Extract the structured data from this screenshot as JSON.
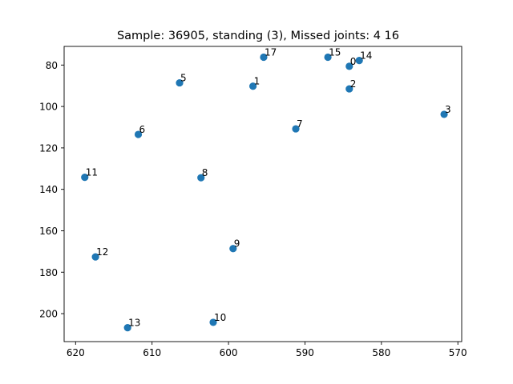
{
  "chart_data": {
    "type": "scatter",
    "title": "Sample: 36905, standing (3), Missed joints: 4  16",
    "xlabel": "",
    "ylabel": "",
    "xlim": [
      621.5,
      569.5
    ],
    "ylim": [
      213.5,
      71
    ],
    "x_inverted": true,
    "y_inverted": true,
    "grid": false,
    "marker_color": "#1f77b4",
    "x_ticks": [
      620,
      610,
      600,
      590,
      580,
      570
    ],
    "y_ticks": [
      80,
      100,
      120,
      140,
      160,
      180,
      200
    ],
    "points": [
      {
        "label": "0",
        "x": 584.2,
        "y": 80.6
      },
      {
        "label": "1",
        "x": 596.8,
        "y": 90.2
      },
      {
        "label": "2",
        "x": 584.2,
        "y": 91.5
      },
      {
        "label": "3",
        "x": 571.8,
        "y": 103.8
      },
      {
        "label": "5",
        "x": 606.4,
        "y": 88.6
      },
      {
        "label": "6",
        "x": 611.8,
        "y": 113.5
      },
      {
        "label": "7",
        "x": 591.2,
        "y": 110.8
      },
      {
        "label": "8",
        "x": 603.6,
        "y": 134.4
      },
      {
        "label": "9",
        "x": 599.4,
        "y": 168.6
      },
      {
        "label": "10",
        "x": 602.0,
        "y": 204.2
      },
      {
        "label": "11",
        "x": 618.8,
        "y": 134.2
      },
      {
        "label": "12",
        "x": 617.4,
        "y": 172.6
      },
      {
        "label": "13",
        "x": 613.2,
        "y": 206.8
      },
      {
        "label": "14",
        "x": 582.9,
        "y": 77.8
      },
      {
        "label": "15",
        "x": 587.0,
        "y": 76.2
      },
      {
        "label": "17",
        "x": 595.4,
        "y": 76.2
      }
    ]
  }
}
